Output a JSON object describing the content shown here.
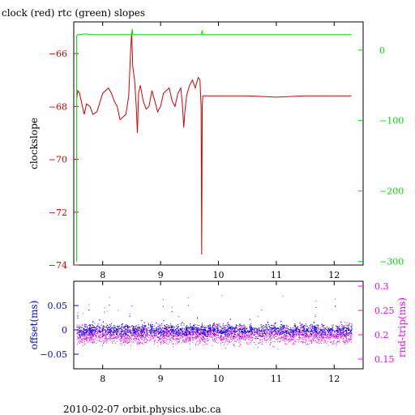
{
  "title": "clock (red) rtc (green) slopes",
  "footer": "2010-02-07  orbit.physics.ubc.ca",
  "colors": {
    "red": "#d40000",
    "green": "#00e000",
    "blue": "#0000ff",
    "magenta": "#ff00ff",
    "axis": "#000000"
  },
  "chart_data": [
    {
      "type": "line",
      "title": "clock (red) rtc (green) slopes",
      "ylabel": "clockslope",
      "xlim": [
        7.5,
        12.5
      ],
      "ylim_left": [
        -74,
        -64.8
      ],
      "ylim_right": [
        -305,
        40
      ],
      "x_ticks": [
        8,
        9,
        10,
        11,
        12
      ],
      "y_ticks_left": [
        -66,
        -68,
        -70,
        -72,
        -74
      ],
      "y_ticks_right": [
        0,
        -100,
        -200,
        -300
      ],
      "series": [
        {
          "name": "clock",
          "axis": "left",
          "color": "red",
          "x": [
            7.55,
            7.57,
            7.6,
            7.65,
            7.68,
            7.72,
            7.78,
            7.83,
            7.9,
            8.0,
            8.05,
            8.1,
            8.15,
            8.2,
            8.25,
            8.3,
            8.35,
            8.4,
            8.45,
            8.48,
            8.5,
            8.52,
            8.55,
            8.58,
            8.6,
            8.62,
            8.65,
            8.7,
            8.75,
            8.8,
            8.85,
            8.9,
            8.95,
            9.0,
            9.05,
            9.1,
            9.15,
            9.2,
            9.25,
            9.3,
            9.35,
            9.38,
            9.4,
            9.42,
            9.45,
            9.5,
            9.55,
            9.6,
            9.65,
            9.68,
            9.7,
            9.71,
            9.72,
            9.73,
            9.8,
            10.0,
            10.5,
            11.0,
            11.5,
            12.0,
            12.3
          ],
          "y": [
            -67.7,
            -67.4,
            -67.5,
            -68.0,
            -68.3,
            -67.9,
            -68.0,
            -68.3,
            -68.2,
            -67.5,
            -67.4,
            -67.3,
            -67.5,
            -67.8,
            -68.0,
            -68.5,
            -68.4,
            -68.3,
            -67.6,
            -66.0,
            -65.2,
            -66.5,
            -67.0,
            -68.0,
            -69.0,
            -67.5,
            -67.2,
            -67.8,
            -68.1,
            -68.0,
            -67.4,
            -67.8,
            -68.2,
            -68.0,
            -67.5,
            -67.4,
            -67.3,
            -67.8,
            -68.0,
            -67.5,
            -67.3,
            -68.0,
            -68.8,
            -68.2,
            -67.6,
            -67.2,
            -67.0,
            -67.3,
            -66.9,
            -67.0,
            -68.0,
            -73.6,
            -68.0,
            -67.6,
            -67.6,
            -67.6,
            -67.6,
            -67.65,
            -67.6,
            -67.6,
            -67.6
          ]
        },
        {
          "name": "rtc",
          "axis": "right",
          "color": "green",
          "x": [
            7.55,
            7.55,
            7.56,
            7.6,
            7.7,
            7.8,
            8.0,
            8.2,
            8.5,
            8.51,
            8.52,
            8.8,
            9.0,
            9.5,
            9.7,
            9.72,
            9.73,
            10.0,
            10.5,
            11.0,
            11.5,
            12.0,
            12.3
          ],
          "y": [
            -300,
            20,
            22,
            22,
            23,
            22,
            22,
            22,
            22,
            30,
            22,
            22,
            22,
            22,
            22,
            28,
            22,
            22,
            22,
            22,
            22,
            22,
            22
          ]
        }
      ]
    },
    {
      "type": "scatter",
      "ylabel_left": "offset(ms)",
      "ylabel_right": "rnd-trip(ms)",
      "xlim": [
        7.5,
        12.5
      ],
      "ylim_left": [
        -0.08,
        0.1
      ],
      "ylim_right": [
        0.13,
        0.31
      ],
      "x_ticks": [
        8,
        9,
        10,
        11,
        12
      ],
      "y_ticks_left": [
        0.05,
        0,
        -0.05
      ],
      "y_ticks_right": [
        0.3,
        0.25,
        0.2,
        0.15
      ],
      "series": [
        {
          "name": "offset",
          "axis": "left",
          "color": "blue",
          "center": 0.0,
          "spread": 0.012,
          "x_range": [
            7.55,
            12.3
          ]
        },
        {
          "name": "rnd-trip",
          "axis": "right",
          "color": "magenta",
          "center": 0.2,
          "spread": 0.018,
          "x_range": [
            7.55,
            12.3
          ]
        }
      ]
    }
  ]
}
